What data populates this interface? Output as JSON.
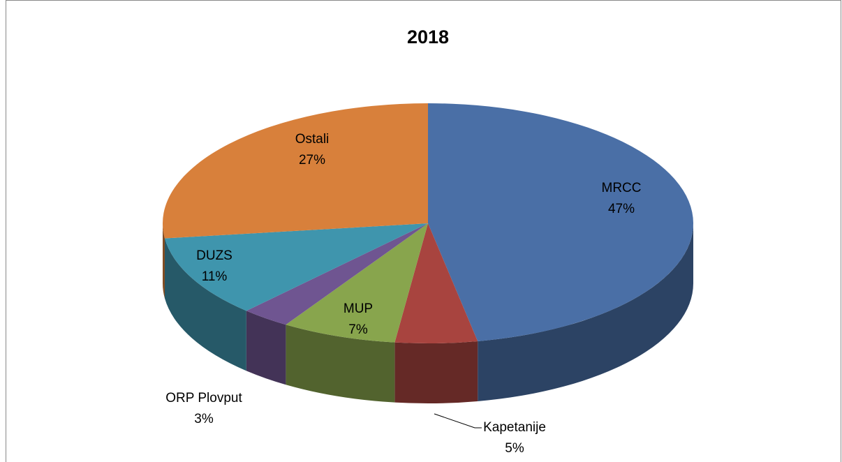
{
  "chart_data": {
    "type": "pie3d",
    "title": "2018",
    "categories": [
      "MRCC",
      "Kapetanije",
      "MUP",
      "ORP Plovput",
      "DUZS",
      "Ostali"
    ],
    "values": [
      47,
      5,
      7,
      3,
      11,
      27
    ],
    "value_labels": [
      "47%",
      "5%",
      "7%",
      "3%",
      "11%",
      "27%"
    ],
    "colors": [
      "#4a6fa6",
      "#a8443f",
      "#88a54d",
      "#6f5591",
      "#3f95ad",
      "#d8803b"
    ]
  }
}
